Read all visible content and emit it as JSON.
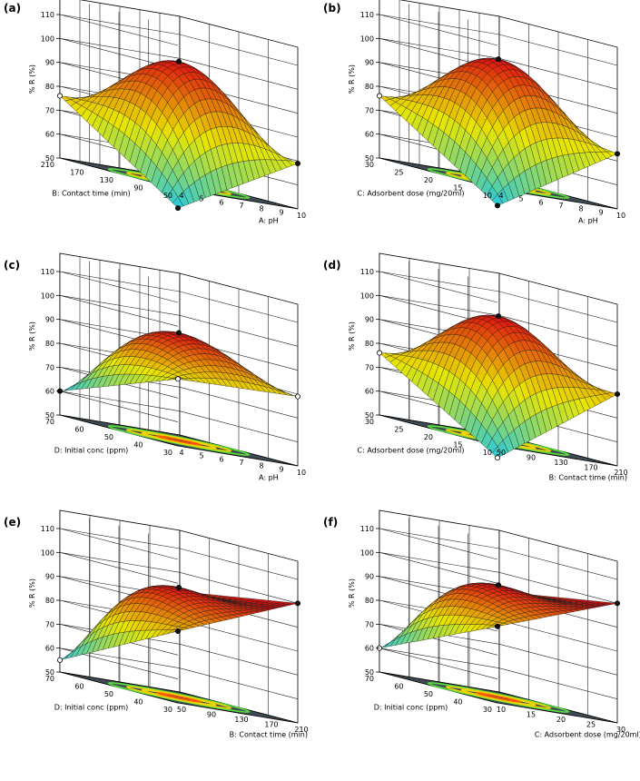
{
  "figure": {
    "colors": {
      "low": "#25c8e0",
      "mid": "#e8e600",
      "high": "#e01010",
      "floor": "#3f4b53",
      "contour_outer": "#58e03c",
      "contour_mid": "#f0d400",
      "contour_inner": "#ff5a00",
      "mesh": "#1a1a1a",
      "point": "#111111",
      "point_light": "#ffffff"
    }
  },
  "chart_data": [
    {
      "label": "(a)",
      "type": "surface3d",
      "zlabel": "% R (%)",
      "zticks": [
        "50",
        "60",
        "70",
        "80",
        "90",
        "100",
        "110"
      ],
      "zlim": [
        50,
        110
      ],
      "xlabel": "A: pH",
      "xticks": [
        "4",
        "5",
        "6",
        "7",
        "8",
        "9",
        "10"
      ],
      "xlim": [
        4,
        10
      ],
      "ylabel": "B: Contact time (min)",
      "yticks": [
        "50",
        "90",
        "130",
        "170",
        "210"
      ],
      "ylim": [
        50,
        210
      ],
      "surface": {
        "center": 101,
        "corners": {
          "x0y0": 42,
          "x1y0": 69,
          "x0y1": 76,
          "x1y1": 78
        }
      },
      "points": [
        {
          "x": 4,
          "y": 50,
          "z": 42,
          "color": "dark"
        },
        {
          "x": 10,
          "y": 50,
          "z": 69,
          "color": "dark"
        },
        {
          "x": 4,
          "y": 210,
          "z": 76,
          "color": "light"
        },
        {
          "x": 7,
          "y": 130,
          "z": 101,
          "color": "dark"
        }
      ]
    },
    {
      "label": "(b)",
      "type": "surface3d",
      "zlabel": "% R (%)",
      "zticks": [
        "50",
        "60",
        "70",
        "80",
        "90",
        "100",
        "110"
      ],
      "zlim": [
        50,
        110
      ],
      "xlabel": "A: pH",
      "xticks": [
        "4",
        "5",
        "6",
        "7",
        "8",
        "9",
        "10"
      ],
      "xlim": [
        4,
        10
      ],
      "ylabel": "C: Adsorbent dose (mg/20ml)",
      "yticks": [
        "10",
        "15",
        "20",
        "25",
        "30"
      ],
      "ylim": [
        10,
        30
      ],
      "surface": {
        "center": 102,
        "corners": {
          "x0y0": 43,
          "x1y0": 73,
          "x0y1": 76,
          "x1y1": 80
        }
      },
      "points": [
        {
          "x": 4,
          "y": 10,
          "z": 43,
          "color": "dark"
        },
        {
          "x": 10,
          "y": 10,
          "z": 73,
          "color": "dark"
        },
        {
          "x": 4,
          "y": 30,
          "z": 76,
          "color": "light"
        },
        {
          "x": 7,
          "y": 20,
          "z": 102,
          "color": "dark"
        }
      ]
    },
    {
      "label": "(c)",
      "type": "surface3d",
      "zlabel": "% R (%)",
      "zticks": [
        "50",
        "60",
        "70",
        "80",
        "90",
        "100",
        "110"
      ],
      "zlim": [
        50,
        110
      ],
      "xlabel": "A: pH",
      "xticks": [
        "4",
        "5",
        "6",
        "7",
        "8",
        "9",
        "10"
      ],
      "xlim": [
        4,
        10
      ],
      "ylabel": "D: Initial conc (ppm)",
      "yticks": [
        "30",
        "40",
        "50",
        "60",
        "70"
      ],
      "ylim": [
        30,
        70
      ],
      "surface": {
        "center": 95,
        "corners": {
          "x0y0": 78,
          "x1y0": 79,
          "x0y1": 60,
          "x1y1": 80
        }
      },
      "points": [
        {
          "x": 4,
          "y": 30,
          "z": 78,
          "color": "light"
        },
        {
          "x": 10,
          "y": 30,
          "z": 79,
          "color": "light"
        },
        {
          "x": 4,
          "y": 70,
          "z": 60,
          "color": "dark"
        },
        {
          "x": 7,
          "y": 50,
          "z": 95,
          "color": "dark"
        }
      ]
    },
    {
      "label": "(d)",
      "type": "surface3d",
      "zlabel": "% R (%)",
      "zticks": [
        "50",
        "60",
        "70",
        "80",
        "90",
        "100",
        "110"
      ],
      "zlim": [
        50,
        110
      ],
      "xlabel": "B: Contact time (min)",
      "xticks": [
        "50",
        "90",
        "130",
        "170",
        "210"
      ],
      "xlim": [
        50,
        210
      ],
      "ylabel": "C: Adsorbent dose (mg/20ml)",
      "yticks": [
        "10",
        "15",
        "20",
        "25",
        "30"
      ],
      "ylim": [
        10,
        30
      ],
      "surface": {
        "center": 102,
        "corners": {
          "x0y0": 45,
          "x1y0": 80,
          "x0y1": 76,
          "x1y1": 82
        }
      },
      "points": [
        {
          "x": 50,
          "y": 10,
          "z": 45,
          "color": "light"
        },
        {
          "x": 210,
          "y": 10,
          "z": 80,
          "color": "dark"
        },
        {
          "x": 50,
          "y": 30,
          "z": 76,
          "color": "light"
        },
        {
          "x": 130,
          "y": 20,
          "z": 102,
          "color": "dark"
        }
      ]
    },
    {
      "label": "(e)",
      "type": "surface3d",
      "zlabel": "% R (%)",
      "zticks": [
        "50",
        "60",
        "70",
        "80",
        "90",
        "100",
        "110"
      ],
      "zlim": [
        50,
        110
      ],
      "xlabel": "B: Contact time (min)",
      "xticks": [
        "50",
        "90",
        "130",
        "170",
        "210"
      ],
      "xlim": [
        50,
        210
      ],
      "ylabel": "D: Initial conc (ppm)",
      "yticks": [
        "30",
        "40",
        "50",
        "60",
        "70"
      ],
      "ylim": [
        30,
        70
      ],
      "surface": {
        "center": 96,
        "corners": {
          "x0y0": 80,
          "x1y0": 100,
          "x0y1": 55,
          "x1y1": 92
        }
      },
      "points": [
        {
          "x": 50,
          "y": 30,
          "z": 80,
          "color": "dark"
        },
        {
          "x": 210,
          "y": 30,
          "z": 100,
          "color": "dark"
        },
        {
          "x": 50,
          "y": 70,
          "z": 55,
          "color": "light"
        },
        {
          "x": 130,
          "y": 50,
          "z": 96,
          "color": "dark"
        }
      ]
    },
    {
      "label": "(f)",
      "type": "surface3d",
      "zlabel": "% R (%)",
      "zticks": [
        "50",
        "60",
        "70",
        "80",
        "90",
        "100",
        "110"
      ],
      "zlim": [
        50,
        110
      ],
      "xlabel": "C: Adsorbent dose (mg/20ml)",
      "xticks": [
        "10",
        "15",
        "20",
        "25",
        "30"
      ],
      "xlim": [
        10,
        30
      ],
      "ylabel": "D: Initial conc (ppm)",
      "yticks": [
        "30",
        "40",
        "50",
        "60",
        "70"
      ],
      "ylim": [
        30,
        70
      ],
      "surface": {
        "center": 97,
        "corners": {
          "x0y0": 82,
          "x1y0": 100,
          "x0y1": 60,
          "x1y1": 92
        }
      },
      "points": [
        {
          "x": 10,
          "y": 30,
          "z": 82,
          "color": "dark"
        },
        {
          "x": 30,
          "y": 30,
          "z": 100,
          "color": "dark"
        },
        {
          "x": 10,
          "y": 70,
          "z": 60,
          "color": "light"
        },
        {
          "x": 20,
          "y": 50,
          "z": 97,
          "color": "dark"
        }
      ]
    }
  ]
}
